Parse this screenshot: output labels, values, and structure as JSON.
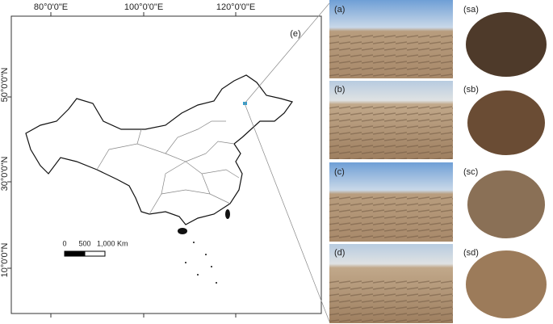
{
  "map": {
    "panel_label": "(e)",
    "lon_labels": [
      "80°0'0\"E",
      "100°0'0\"E",
      "120°0'0\"E"
    ],
    "lat_labels": [
      "50°0'0\"N",
      "30°0'0\"N",
      "10°0'0\"N"
    ],
    "scale_bar": [
      "0",
      "500",
      "1,000 Km"
    ]
  },
  "photos": {
    "field": [
      "(a)",
      "(b)",
      "(c)",
      "(d)"
    ],
    "soil": [
      "(sa)",
      "(sb)",
      "(sc)",
      "(sd)"
    ]
  }
}
